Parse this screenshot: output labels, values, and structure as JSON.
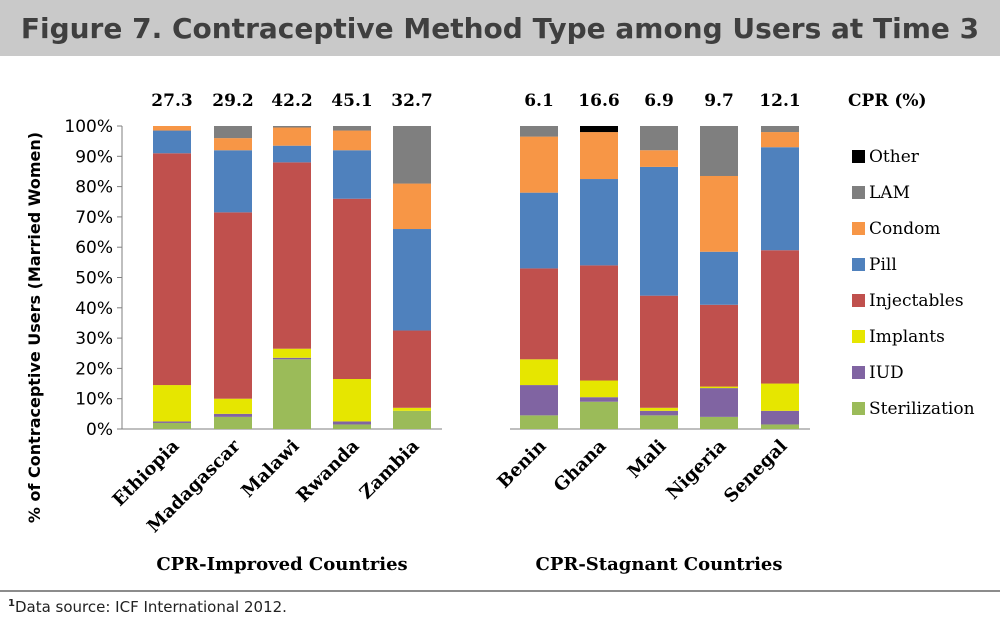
{
  "title": "Figure 7. Contraceptive Method Type among Users at Time 3",
  "footnote": {
    "marker": "1",
    "text": "Data source: ICF International 2012."
  },
  "chart_data": {
    "type": "bar",
    "stacked": true,
    "ylabel": "% of Contraceptive Users (Married Women)",
    "yticks": [
      "0%",
      "10%",
      "20%",
      "30%",
      "40%",
      "50%",
      "60%",
      "70%",
      "80%",
      "90%",
      "100%"
    ],
    "ylim": [
      0,
      100
    ],
    "cpr_header": "CPR (%)",
    "groups": [
      {
        "label": "CPR-Improved Countries",
        "categories": [
          "Ethiopia",
          "Madagascar",
          "Malawi",
          "Rwanda",
          "Zambia"
        ]
      },
      {
        "label": "CPR-Stagnant Countries",
        "categories": [
          "Benin",
          "Ghana",
          "Mali",
          "Nigeria",
          "Senegal"
        ]
      }
    ],
    "categories": [
      "Ethiopia",
      "Madagascar",
      "Malawi",
      "Rwanda",
      "Zambia",
      "Benin",
      "Ghana",
      "Mali",
      "Nigeria",
      "Senegal"
    ],
    "cpr": [
      "27.3",
      "29.2",
      "42.2",
      "45.1",
      "32.7",
      "6.1",
      "16.6",
      "6.9",
      "9.7",
      "12.1"
    ],
    "series": [
      {
        "name": "Sterilization",
        "color": "#9bbb59",
        "values": [
          2,
          4,
          23,
          1.5,
          6,
          4.5,
          9,
          4.5,
          4,
          1.5
        ]
      },
      {
        "name": "IUD",
        "color": "#8064a2",
        "values": [
          0.5,
          1,
          0.5,
          1,
          0,
          10,
          1.5,
          1.5,
          9.5,
          4.5
        ]
      },
      {
        "name": "Implants",
        "color": "#e6e600",
        "values": [
          12,
          5,
          3,
          14,
          1,
          8.5,
          5.5,
          1,
          0.5,
          9
        ]
      },
      {
        "name": "Injectables",
        "color": "#c0504d",
        "values": [
          76.5,
          61.5,
          61.5,
          59.5,
          25.5,
          30,
          38,
          37,
          27,
          44
        ]
      },
      {
        "name": "Pill",
        "color": "#4f81bd",
        "values": [
          7.5,
          20.5,
          5.5,
          16,
          33.5,
          25,
          28.5,
          42.5,
          17.5,
          34
        ]
      },
      {
        "name": "Condom",
        "color": "#f79646",
        "values": [
          1.5,
          4,
          6,
          6.5,
          15,
          18.5,
          15.5,
          5.5,
          25,
          5
        ]
      },
      {
        "name": "LAM",
        "color": "#7f7f7f",
        "values": [
          0,
          4,
          0.5,
          1.5,
          19,
          3.5,
          0,
          8,
          16.5,
          2
        ]
      },
      {
        "name": "Other",
        "color": "#000000",
        "values": [
          0,
          0,
          0,
          0,
          0,
          0,
          2,
          0,
          0,
          0
        ]
      }
    ],
    "legend_order": [
      "Other",
      "LAM",
      "Condom",
      "Pill",
      "Injectables",
      "Implants",
      "IUD",
      "Sterilization"
    ],
    "legend_position": "right",
    "grid": false
  }
}
